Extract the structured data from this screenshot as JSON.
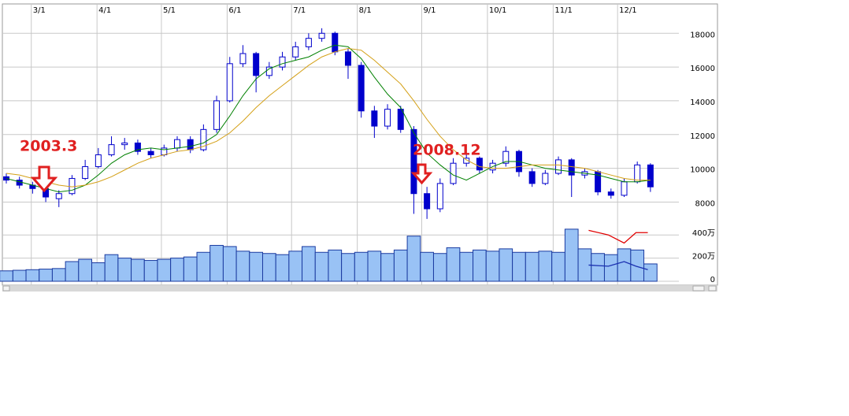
{
  "chart_data": {
    "type": "candlestick",
    "annotations": [
      "2003.3",
      "2008.12"
    ],
    "xlim": [
      -0.3,
      54.1
    ],
    "xticks": [
      {
        "value": 1.9,
        "label": "3/1"
      },
      {
        "value": 6.9,
        "label": "4/1"
      },
      {
        "value": 11.8,
        "label": "5/1"
      },
      {
        "value": 16.8,
        "label": "6/1"
      },
      {
        "value": 21.7,
        "label": "7/1"
      },
      {
        "value": 26.7,
        "label": "8/1"
      },
      {
        "value": 31.6,
        "label": "9/1"
      },
      {
        "value": 36.6,
        "label": "10/1"
      },
      {
        "value": 41.6,
        "label": "11/1"
      },
      {
        "value": 46.5,
        "label": "12/1"
      }
    ],
    "ylim": [
      6900,
      19600
    ],
    "yticks": [
      8000,
      10000,
      12000,
      14000,
      16000,
      18000
    ],
    "y2lim": [
      0,
      4900000
    ],
    "y2ticks": [
      0,
      {
        "value": 2000000,
        "label": "200万"
      },
      {
        "value": 4000000,
        "label": "400万"
      }
    ],
    "candle_color": "#0000cc",
    "volume_color": "#99c2f5",
    "grid": true,
    "open": [
      9500,
      9300,
      9000,
      8800,
      8200,
      8500,
      9400,
      10100,
      10800,
      11400,
      11500,
      11000,
      10800,
      11200,
      11700,
      11100,
      12300,
      14000,
      16200,
      16800,
      15500,
      16000,
      16600,
      17200,
      17700,
      18000,
      16900,
      16100,
      13400,
      12500,
      13500,
      12300,
      8500,
      7600,
      9100,
      10300,
      10600,
      9900,
      10300,
      11000,
      9800,
      9100,
      9700,
      10500,
      9600,
      9800,
      8600,
      8400,
      9200,
      10200
    ],
    "high": [
      9700,
      9500,
      9200,
      9000,
      8700,
      9600,
      10500,
      11200,
      11900,
      11800,
      11700,
      11200,
      11400,
      11900,
      11900,
      12600,
      14300,
      16600,
      17300,
      16900,
      16300,
      16900,
      17500,
      18000,
      18300,
      18100,
      17100,
      16300,
      13700,
      13800,
      13700,
      12500,
      8900,
      9400,
      10600,
      10900,
      10700,
      10500,
      11300,
      11100,
      10000,
      9900,
      10700,
      10600,
      10000,
      9900,
      8800,
      9400,
      10400,
      10300
    ],
    "low": [
      9100,
      8800,
      8500,
      8000,
      7700,
      8400,
      9300,
      10000,
      10700,
      11100,
      10800,
      10600,
      10700,
      11000,
      10900,
      11000,
      12100,
      13900,
      16000,
      14500,
      15300,
      15800,
      16400,
      17000,
      17500,
      16700,
      15300,
      13000,
      11800,
      12300,
      12100,
      7300,
      7000,
      7400,
      9000,
      10100,
      9700,
      9700,
      10100,
      9500,
      8900,
      9000,
      9600,
      8300,
      9400,
      8400,
      8200,
      8300,
      9100,
      8600
    ],
    "close": [
      9300,
      9000,
      8800,
      8300,
      8500,
      9400,
      10100,
      10800,
      11400,
      11500,
      11000,
      10800,
      11200,
      11700,
      11100,
      12300,
      14000,
      16200,
      16800,
      15500,
      16000,
      16600,
      17200,
      17700,
      18000,
      16900,
      16100,
      13400,
      12500,
      13500,
      12300,
      8500,
      7600,
      9100,
      10300,
      10600,
      9900,
      10300,
      11000,
      9800,
      9100,
      9700,
      10500,
      9600,
      9800,
      8600,
      8400,
      9200,
      10200,
      8900
    ],
    "volume": [
      900000,
      950000,
      1000000,
      1050000,
      1100000,
      1700000,
      1900000,
      1600000,
      2300000,
      2000000,
      1900000,
      1800000,
      1900000,
      2000000,
      2100000,
      2500000,
      3100000,
      3000000,
      2600000,
      2500000,
      2400000,
      2300000,
      2600000,
      3000000,
      2500000,
      2700000,
      2400000,
      2500000,
      2600000,
      2400000,
      2700000,
      3900000,
      2500000,
      2400000,
      2900000,
      2500000,
      2700000,
      2600000,
      2800000,
      2500000,
      2500000,
      2600000,
      2500000,
      4500000,
      2800000,
      2400000,
      2300000,
      2800000,
      2700000,
      1500000
    ],
    "lines": [
      {
        "color": "#008000",
        "values": [
          9400,
          9200,
          9000,
          8800,
          8600,
          8700,
          9000,
          9600,
          10300,
          10800,
          11100,
          11200,
          11100,
          11200,
          11300,
          11500,
          12000,
          13100,
          14300,
          15300,
          15900,
          16200,
          16400,
          16600,
          17000,
          17300,
          17200,
          16500,
          15400,
          14400,
          13600,
          12100,
          10900,
          10200,
          9600,
          9300,
          9700,
          10100,
          10400,
          10400,
          10200,
          10000,
          9900,
          9800,
          9700,
          9600,
          9400,
          9200,
          9200,
          9300
        ]
      },
      {
        "color": "#d4a017",
        "values": [
          9700,
          9600,
          9400,
          9200,
          9000,
          8900,
          9000,
          9200,
          9500,
          9900,
          10300,
          10600,
          10800,
          11000,
          11100,
          11300,
          11600,
          12100,
          12800,
          13600,
          14300,
          14900,
          15500,
          16100,
          16600,
          16900,
          17100,
          17000,
          16400,
          15700,
          15000,
          14000,
          12900,
          11900,
          11100,
          10500,
          10100,
          10000,
          10000,
          10100,
          10200,
          10200,
          10200,
          10100,
          10000,
          9800,
          9600,
          9400,
          9300,
          9300
        ]
      }
    ],
    "volume_lines": [
      {
        "color": "#e00000",
        "x": [
          44.3,
          45.8,
          47,
          47.9,
          48.8
        ],
        "values": [
          4400000,
          4000000,
          3300000,
          4200000,
          4200000
        ]
      },
      {
        "color": "#1a2fb0",
        "x": [
          44.3,
          45.8,
          47,
          47.9,
          48.8
        ],
        "values": [
          1400000,
          1300000,
          1700000,
          1300000,
          1000000
        ]
      }
    ]
  }
}
